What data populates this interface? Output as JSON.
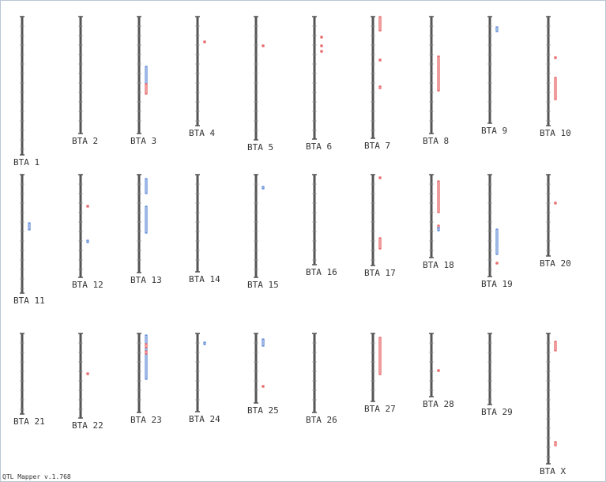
{
  "app": {
    "version_text": "QTL Mapper v.1.768"
  },
  "colors": {
    "chromosome": "#555555",
    "qtl_red": "#e0393b",
    "qtl_blue": "#3b6fcf"
  },
  "chromosomes": [
    {
      "label": "BTA 1",
      "length": 175,
      "qtls": []
    },
    {
      "label": "BTA 2",
      "length": 148,
      "qtls": []
    },
    {
      "label": "BTA 3",
      "length": 148,
      "qtls": [
        {
          "color": "blue",
          "start": 63,
          "end": 98
        },
        {
          "color": "red",
          "start": 85,
          "end": 98
        }
      ]
    },
    {
      "label": "BTA 4",
      "length": 138,
      "qtls": [
        {
          "color": "red",
          "start": 31,
          "end": 33
        }
      ]
    },
    {
      "label": "BTA 5",
      "length": 156,
      "qtls": [
        {
          "color": "red",
          "start": 36,
          "end": 38
        }
      ]
    },
    {
      "label": "BTA 6",
      "length": 155,
      "qtls": [
        {
          "color": "red",
          "start": 25,
          "end": 27
        },
        {
          "color": "red",
          "start": 36,
          "end": 38
        },
        {
          "color": "red",
          "start": 43,
          "end": 45
        }
      ]
    },
    {
      "label": "BTA 7",
      "length": 154,
      "qtls": [
        {
          "color": "red",
          "start": 0,
          "end": 18
        },
        {
          "color": "red",
          "start": 54,
          "end": 56
        },
        {
          "color": "red",
          "start": 88,
          "end": 91
        }
      ]
    },
    {
      "label": "BTA 8",
      "length": 148,
      "qtls": [
        {
          "color": "red",
          "start": 50,
          "end": 94
        }
      ]
    },
    {
      "label": "BTA 9",
      "length": 135,
      "qtls": [
        {
          "color": "blue",
          "start": 13,
          "end": 19
        }
      ]
    },
    {
      "label": "BTA 10",
      "length": 138,
      "qtls": [
        {
          "color": "red",
          "start": 51,
          "end": 53
        },
        {
          "color": "red",
          "start": 77,
          "end": 105
        }
      ]
    },
    {
      "label": "BTA 11",
      "length": 150,
      "qtls": [
        {
          "color": "blue",
          "start": 61,
          "end": 70
        }
      ]
    },
    {
      "label": "BTA 12",
      "length": 130,
      "qtls": [
        {
          "color": "red",
          "start": 39,
          "end": 41
        },
        {
          "color": "blue",
          "start": 83,
          "end": 86
        }
      ]
    },
    {
      "label": "BTA 13",
      "length": 124,
      "qtls": [
        {
          "color": "blue",
          "start": 5,
          "end": 24
        },
        {
          "color": "blue",
          "start": 40,
          "end": 74
        }
      ]
    },
    {
      "label": "BTA 14",
      "length": 123,
      "qtls": []
    },
    {
      "label": "BTA 15",
      "length": 130,
      "qtls": [
        {
          "color": "blue",
          "start": 15,
          "end": 18
        }
      ]
    },
    {
      "label": "BTA 16",
      "length": 114,
      "qtls": []
    },
    {
      "label": "BTA 17",
      "length": 115,
      "qtls": [
        {
          "color": "red",
          "start": 3,
          "end": 5
        },
        {
          "color": "red",
          "start": 80,
          "end": 94
        }
      ]
    },
    {
      "label": "BTA 18",
      "length": 105,
      "qtls": [
        {
          "color": "red",
          "start": 8,
          "end": 48
        },
        {
          "color": "red",
          "start": 64,
          "end": 69
        },
        {
          "color": "blue",
          "start": 67,
          "end": 71
        }
      ]
    },
    {
      "label": "BTA 19",
      "length": 129,
      "qtls": [
        {
          "color": "blue",
          "start": 69,
          "end": 101
        },
        {
          "color": "red",
          "start": 111,
          "end": 113
        }
      ]
    },
    {
      "label": "BTA 20",
      "length": 103,
      "qtls": [
        {
          "color": "red",
          "start": 35,
          "end": 37
        }
      ]
    },
    {
      "label": "BTA 21",
      "length": 102,
      "qtls": []
    },
    {
      "label": "BTA 22",
      "length": 107,
      "qtls": [
        {
          "color": "red",
          "start": 50,
          "end": 52
        }
      ]
    },
    {
      "label": "BTA 23",
      "length": 100,
      "qtls": [
        {
          "color": "blue",
          "start": 2,
          "end": 58
        },
        {
          "color": "red",
          "start": 13,
          "end": 18
        },
        {
          "color": "red",
          "start": 22,
          "end": 26
        }
      ]
    },
    {
      "label": "BTA 24",
      "length": 99,
      "qtls": [
        {
          "color": "blue",
          "start": 11,
          "end": 14
        }
      ]
    },
    {
      "label": "BTA 25",
      "length": 88,
      "qtls": [
        {
          "color": "blue",
          "start": 7,
          "end": 16
        },
        {
          "color": "red",
          "start": 66,
          "end": 68
        }
      ]
    },
    {
      "label": "BTA 26",
      "length": 100,
      "qtls": []
    },
    {
      "label": "BTA 27",
      "length": 86,
      "qtls": [
        {
          "color": "red",
          "start": 5,
          "end": 52
        }
      ]
    },
    {
      "label": "BTA 28",
      "length": 80,
      "qtls": [
        {
          "color": "red",
          "start": 46,
          "end": 48
        }
      ]
    },
    {
      "label": "BTA 29",
      "length": 90,
      "qtls": []
    },
    {
      "label": "BTA X",
      "length": 165,
      "qtls": [
        {
          "color": "red",
          "start": 10,
          "end": 22
        },
        {
          "color": "red",
          "start": 137,
          "end": 142
        }
      ]
    }
  ]
}
